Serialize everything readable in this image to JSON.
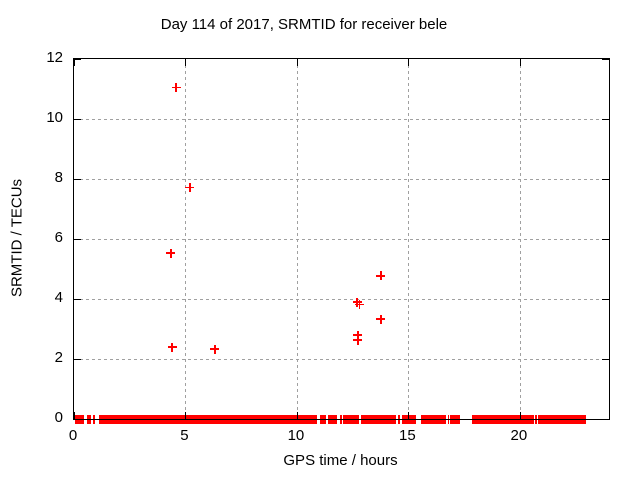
{
  "title": "Day 114 of 2017, SRMTID for receiver bele",
  "colors": {
    "marker": "#ff0000",
    "grid": "#a0a0a0",
    "axis": "#000000",
    "text": "#000000",
    "background": "#ffffff"
  },
  "chart_data": {
    "type": "scatter",
    "title": "Day 114 of 2017, SRMTID for receiver bele",
    "xlabel": "GPS time / hours",
    "ylabel": "SRMTID / TECUs",
    "xlim": [
      0,
      24
    ],
    "ylim": [
      0,
      12
    ],
    "x_ticks": [
      0,
      5,
      10,
      15,
      20
    ],
    "y_ticks": [
      0,
      2,
      4,
      6,
      8,
      10,
      12
    ],
    "grid": true,
    "legend": "none",
    "marker": "plus",
    "marker_color": "#ff0000",
    "points": [
      [
        4.58,
        11.05
      ],
      [
        5.2,
        7.72
      ],
      [
        4.35,
        5.53
      ],
      [
        4.4,
        2.4
      ],
      [
        6.32,
        2.33
      ],
      [
        12.7,
        3.9
      ],
      [
        12.8,
        3.82
      ],
      [
        13.77,
        4.77
      ],
      [
        13.77,
        3.33
      ],
      [
        12.74,
        2.8
      ],
      [
        12.74,
        2.63
      ]
    ],
    "zero_band_segments_hours": [
      [
        0.05,
        0.45
      ],
      [
        0.6,
        0.78
      ],
      [
        0.87,
        0.94
      ],
      [
        1.12,
        10.91
      ],
      [
        11.02,
        11.29
      ],
      [
        11.41,
        11.81
      ],
      [
        11.92,
        12.01
      ],
      [
        12.08,
        12.78
      ],
      [
        12.86,
        14.43
      ],
      [
        14.53,
        14.61
      ],
      [
        14.73,
        15.35
      ],
      [
        15.58,
        16.7
      ],
      [
        16.76,
        16.82
      ],
      [
        16.88,
        17.3
      ],
      [
        17.87,
        20.63
      ],
      [
        20.69,
        20.75
      ],
      [
        20.81,
        22.95
      ]
    ]
  }
}
